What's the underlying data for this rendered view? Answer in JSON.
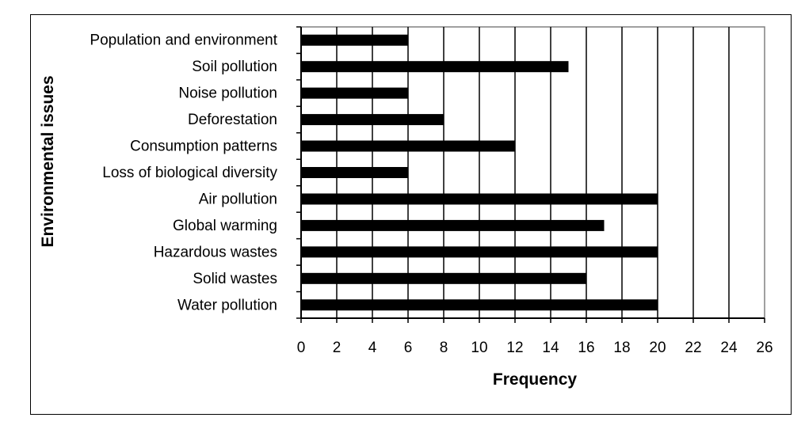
{
  "chart_data": {
    "type": "bar",
    "orientation": "horizontal",
    "categories": [
      "Population and environment",
      "Soil pollution",
      "Noise pollution",
      "Deforestation",
      "Consumption patterns",
      "Loss of biological diversity",
      "Air pollution",
      "Global warming",
      "Hazardous wastes",
      "Solid wastes",
      "Water pollution"
    ],
    "values": [
      6,
      15,
      6,
      8,
      12,
      6,
      20,
      17,
      20,
      16,
      20
    ],
    "title": "",
    "xlabel": "Frequency",
    "ylabel": "Environmental issues",
    "xlim": [
      0,
      26
    ],
    "xticks": [
      "0",
      "2",
      "4",
      "6",
      "8",
      "10",
      "12",
      "14",
      "16",
      "18",
      "20",
      "22",
      "24",
      "26"
    ],
    "grid": true,
    "legend": "none",
    "bar_color": "#000000"
  }
}
